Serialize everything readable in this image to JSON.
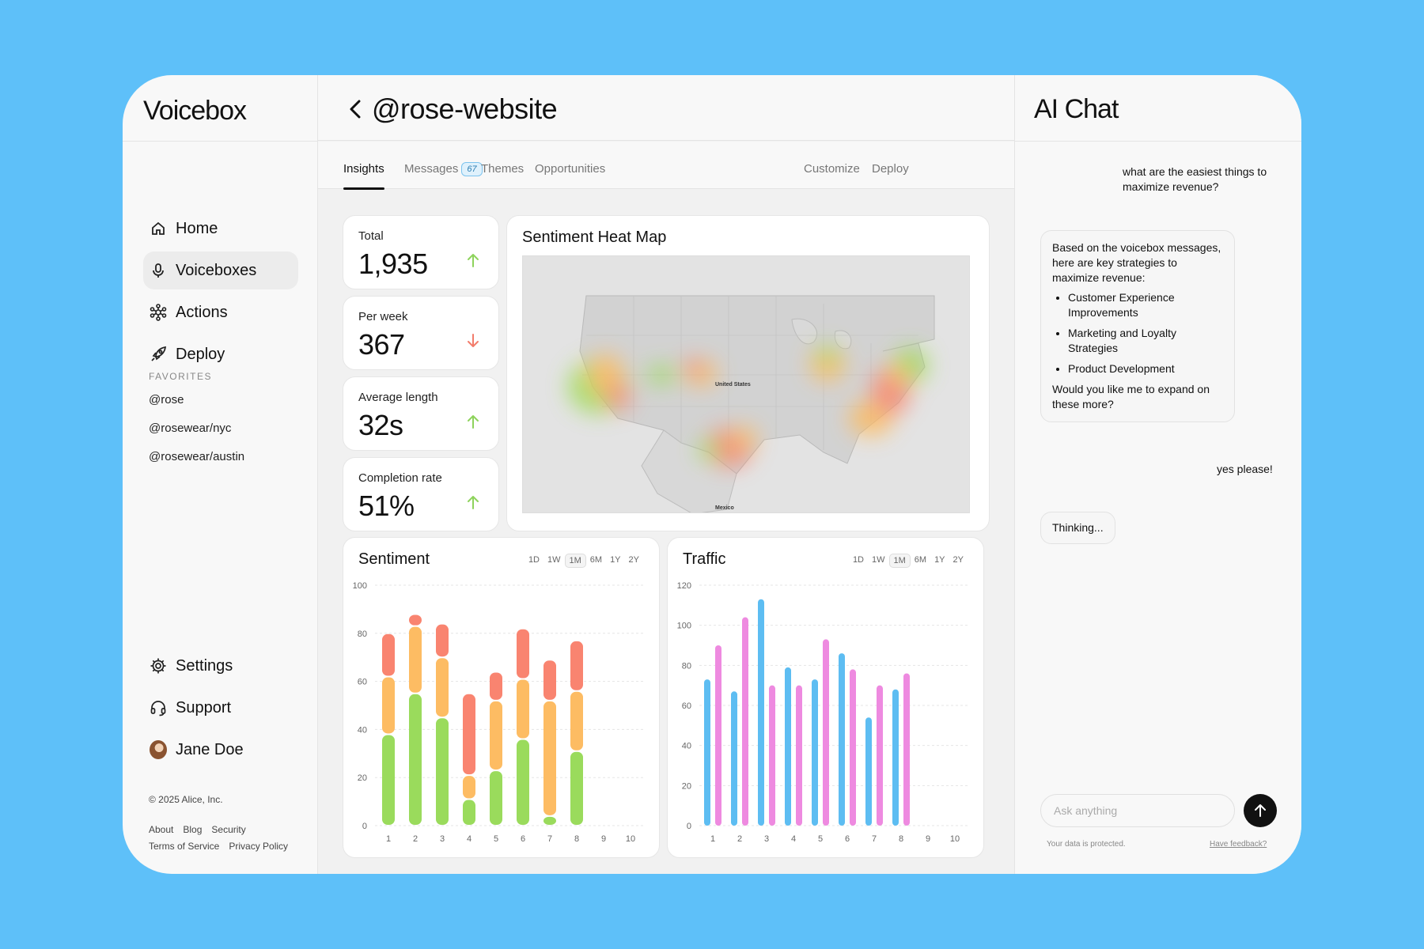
{
  "brand": "Voicebox",
  "nav": [
    {
      "label": "Home",
      "icon": "home-icon"
    },
    {
      "label": "Voiceboxes",
      "icon": "microphone-icon"
    },
    {
      "label": "Actions",
      "icon": "actions-icon"
    },
    {
      "label": "Deploy",
      "icon": "rocket-icon"
    }
  ],
  "favorites": {
    "title": "FAVORITES",
    "items": [
      "@rose",
      "@rosewear/nyc",
      "@rosewear/austin"
    ]
  },
  "bottom_nav": [
    {
      "label": "Settings",
      "icon": "gear-icon"
    },
    {
      "label": "Support",
      "icon": "headset-icon"
    },
    {
      "label": "Jane Doe",
      "icon": "avatar"
    }
  ],
  "footer": {
    "copyright": "© 2025 Alice, Inc.",
    "links": [
      "About",
      "Blog",
      "Security",
      "Terms of Service",
      "Privacy Policy"
    ]
  },
  "page": {
    "title": "@rose-website"
  },
  "tabs": [
    {
      "label": "Insights",
      "active": true
    },
    {
      "label": "Messages",
      "badge": "67"
    },
    {
      "label": "Themes"
    },
    {
      "label": "Opportunities"
    }
  ],
  "actions": [
    "Customize",
    "Deploy"
  ],
  "stats": [
    {
      "label": "Total",
      "value": "1,935",
      "trend": "up"
    },
    {
      "label": "Per week",
      "value": "367",
      "trend": "down"
    },
    {
      "label": "Average length",
      "value": "32s",
      "trend": "up"
    },
    {
      "label": "Completion rate",
      "value": "51%",
      "trend": "up"
    }
  ],
  "colors": {
    "up": "#8ed35c",
    "down": "#f27c6b",
    "green": "#9adb5c",
    "orange": "#fdbc63",
    "red": "#f98470",
    "blue": "#5dbdf2",
    "pink": "#ee8ae0",
    "background": "#5ec0f9"
  },
  "heatmap": {
    "title": "Sentiment Heat Map",
    "labels": [
      "United States",
      "Mexico"
    ]
  },
  "ranges": [
    "1D",
    "1W",
    "1M",
    "6M",
    "1Y",
    "2Y"
  ],
  "selected_range": "1M",
  "chart_data": [
    {
      "type": "bar",
      "title": "Sentiment",
      "stacked": true,
      "categories": [
        "1",
        "2",
        "3",
        "4",
        "5",
        "6",
        "7",
        "8",
        "9",
        "10"
      ],
      "series": [
        {
          "color": "#9adb5c",
          "values": [
            38,
            55,
            45,
            11,
            23,
            36,
            4,
            31,
            0,
            0
          ]
        },
        {
          "color": "#fdbc63",
          "values": [
            24,
            28,
            25,
            10,
            29,
            25,
            48,
            25,
            0,
            0
          ]
        },
        {
          "color": "#f98470",
          "values": [
            18,
            5,
            14,
            34,
            12,
            21,
            17,
            21,
            0,
            0
          ]
        }
      ],
      "segments": [
        [
          [
            0,
            38,
            "#9adb5c"
          ],
          [
            38,
            62,
            "#fdbc63"
          ],
          [
            62,
            80,
            "#f98470"
          ]
        ],
        [
          [
            0,
            55,
            "#9adb5c"
          ],
          [
            55,
            83,
            "#fdbc63"
          ],
          [
            83,
            88,
            "#f98470"
          ]
        ],
        [
          [
            0,
            45,
            "#9adb5c"
          ],
          [
            45,
            70,
            "#fdbc63"
          ],
          [
            70,
            84,
            "#f98470"
          ]
        ],
        [
          [
            0,
            11,
            "#9adb5c"
          ],
          [
            11,
            21,
            "#fdbc63"
          ],
          [
            21,
            55,
            "#f98470"
          ]
        ],
        [
          [
            0,
            23,
            "#9adb5c"
          ],
          [
            23,
            52,
            "#fdbc63"
          ],
          [
            52,
            64,
            "#f98470"
          ]
        ],
        [
          [
            0,
            36,
            "#9adb5c"
          ],
          [
            36,
            61,
            "#fdbc63"
          ],
          [
            61,
            82,
            "#f98470"
          ]
        ],
        [
          [
            0,
            4,
            "#9adb5c"
          ],
          [
            4,
            52,
            "#fdbc63"
          ],
          [
            52,
            69,
            "#f98470"
          ]
        ],
        [
          [
            0,
            31,
            "#9adb5c"
          ],
          [
            31,
            56,
            "#fdbc63"
          ],
          [
            56,
            77,
            "#f98470"
          ]
        ]
      ],
      "ylim": [
        0,
        100
      ],
      "yticks": [
        0,
        20,
        40,
        60,
        80,
        100
      ],
      "grid": true
    },
    {
      "type": "bar",
      "title": "Traffic",
      "categories": [
        "1",
        "2",
        "3",
        "4",
        "5",
        "6",
        "7",
        "8",
        "9",
        "10"
      ],
      "series": [
        {
          "color": "#5dbdf2",
          "values": [
            73,
            67,
            113,
            79,
            73,
            86,
            54,
            68,
            0,
            0
          ]
        },
        {
          "color": "#ee8ae0",
          "values": [
            90,
            104,
            70,
            70,
            93,
            78,
            70,
            76,
            0,
            0
          ]
        }
      ],
      "ylim": [
        0,
        120
      ],
      "yticks": [
        0,
        20,
        40,
        60,
        80,
        100,
        120
      ],
      "grid": true
    }
  ],
  "chat": {
    "title": "AI Chat",
    "user_message_1": "what are the easiest things to maximize revenue?",
    "ai_intro": "Based on the voicebox messages, here are key strategies to maximize revenue:",
    "ai_points": [
      "Customer Experience Improvements",
      "Marketing and Loyalty Strategies",
      "Product Development"
    ],
    "ai_outro": "Would you like me to expand on these more?",
    "user_message_2": "yes please!",
    "thinking": "Thinking...",
    "input_placeholder": "Ask anything",
    "protected": "Your data is protected.",
    "feedback": "Have feedback?"
  }
}
